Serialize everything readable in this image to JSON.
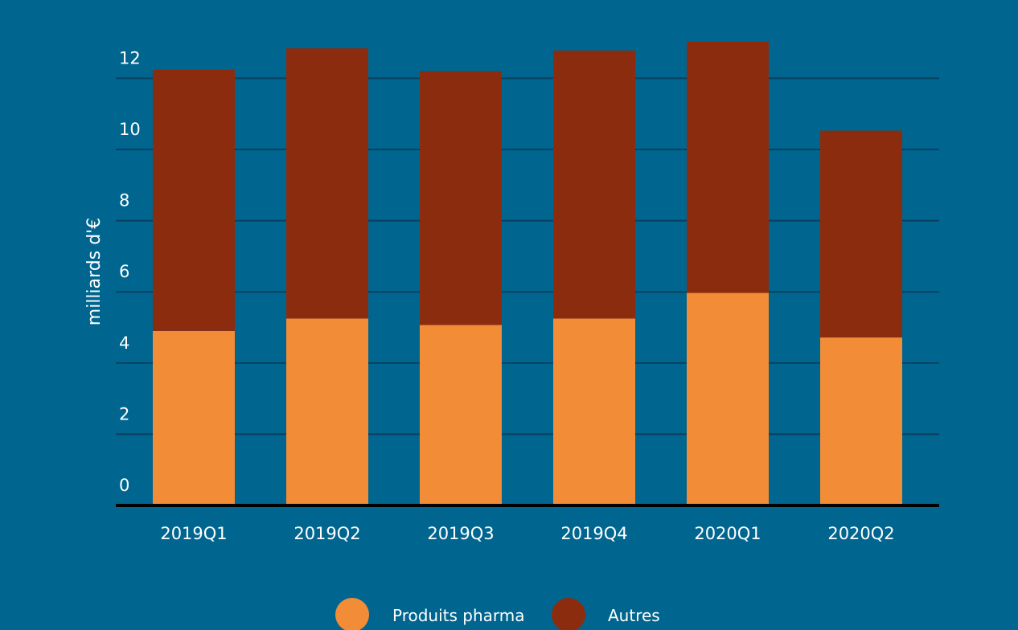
{
  "chart_data": {
    "type": "bar",
    "stacked": true,
    "categories": [
      "2019Q1",
      "2019Q2",
      "2019Q3",
      "2019Q4",
      "2020Q1",
      "2020Q2"
    ],
    "series": [
      {
        "name": "Produits pharma",
        "color": "#f28c36",
        "values": [
          4.9,
          5.25,
          5.07,
          5.25,
          5.97,
          4.72
        ]
      },
      {
        "name": "Autres",
        "color": "#8b2c0e",
        "values": [
          7.34,
          7.59,
          7.13,
          7.53,
          7.06,
          5.81
        ]
      }
    ],
    "title": "",
    "xlabel": "",
    "ylabel": "milliards d'€",
    "ylim": [
      0,
      13
    ],
    "yticks": [
      0,
      2,
      4,
      6,
      8,
      10,
      12
    ],
    "grid": true,
    "legend_position": "bottom-center"
  }
}
